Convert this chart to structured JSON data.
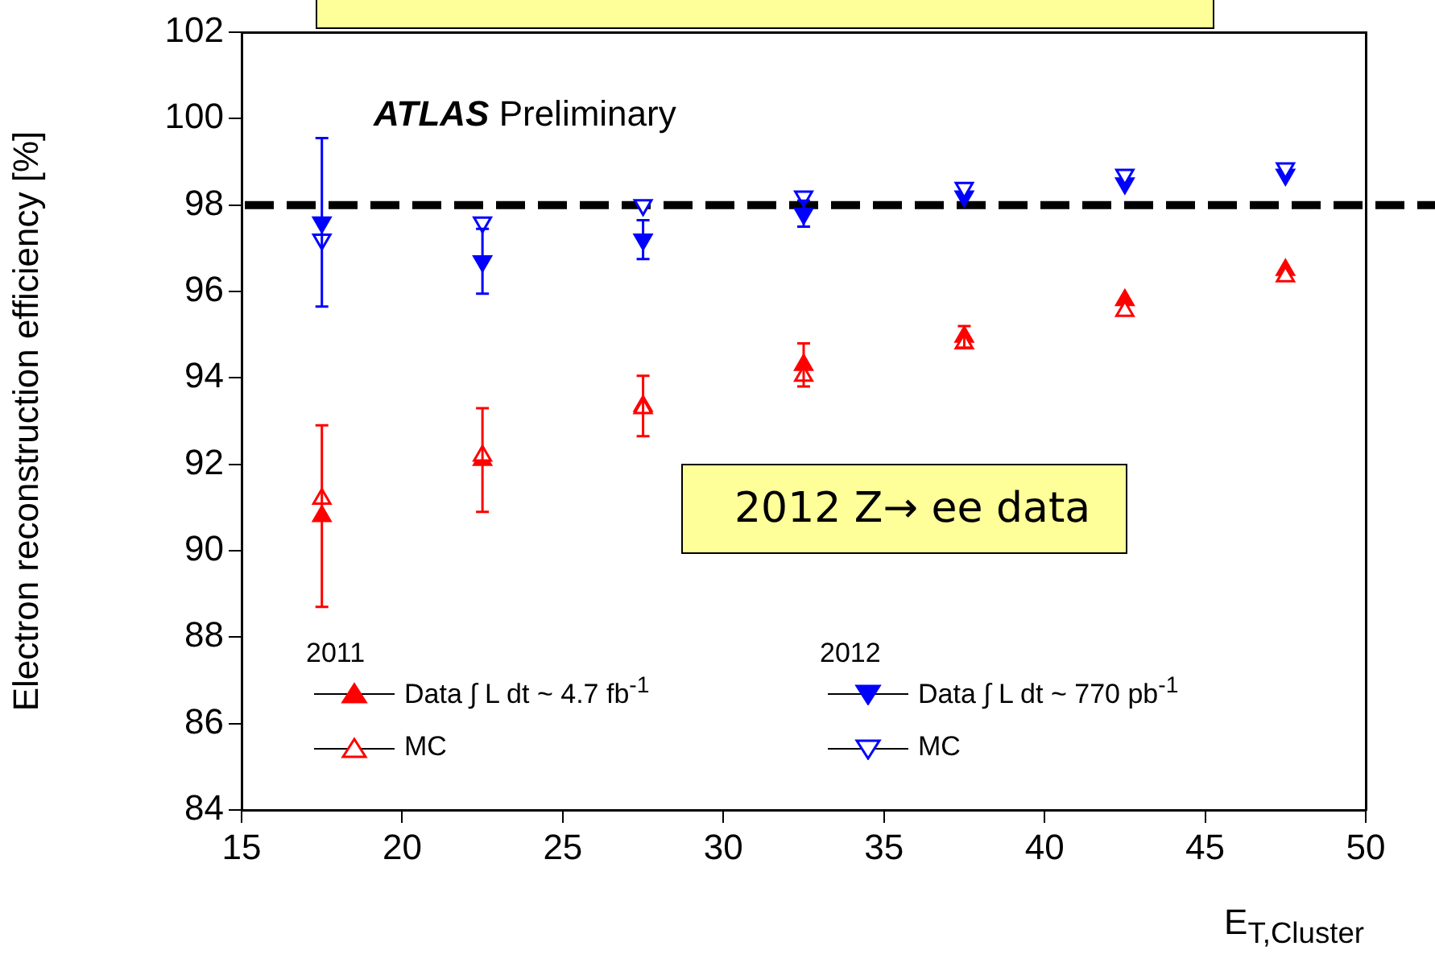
{
  "chart_data": {
    "type": "scatter",
    "ylabel": "Electron reconstruction efficiency [%]",
    "xlabel": "E$_{T,Cluster}$",
    "xlim": [
      15,
      50
    ],
    "xticks": [
      15,
      20,
      25,
      30,
      35,
      40,
      45,
      50
    ],
    "ylim": [
      84,
      102
    ],
    "yticks": [
      84,
      86,
      88,
      90,
      92,
      94,
      96,
      98,
      100,
      102
    ],
    "grid": false,
    "legend": "bottom",
    "annotations": [
      "ATLAS Preliminary",
      "2012 Z→ ee data",
      "2011",
      "2012"
    ],
    "ref_lines": [
      {
        "axis": "y",
        "value": 98,
        "color": "#000000",
        "line_style": "dashed"
      }
    ],
    "x": [
      17.5,
      22.5,
      27.5,
      32.5,
      37.5,
      42.5,
      47.5
    ],
    "series": [
      {
        "name": "Data ∫ L dt ~ 4.7 fb$^{-1}$",
        "color": "#ff0000",
        "marker": "triangle",
        "values": [
          90.8,
          92.1,
          93.35,
          94.3,
          94.95,
          95.8,
          96.5
        ],
        "errors": [
          2.1,
          1.2,
          0.7,
          0.5,
          0.25,
          null,
          null
        ]
      },
      {
        "name": "MC",
        "color": "#ff0000",
        "marker": "triangle-open",
        "values": [
          91.2,
          92.2,
          93.3,
          94.05,
          94.8,
          95.55,
          96.35
        ]
      },
      {
        "name": "Data ∫ L dt ~ 770 pb$^{-1}$",
        "color": "#0000ff",
        "marker": "triangle-down",
        "values": [
          97.6,
          96.7,
          97.2,
          97.8,
          98.2,
          98.5,
          98.7
        ],
        "errors": [
          1.95,
          0.75,
          0.45,
          0.3,
          null,
          null,
          null
        ]
      },
      {
        "name": "MC",
        "color": "#0000ff",
        "marker": "triangle-down-open",
        "values": [
          97.2,
          97.6,
          98.0,
          98.2,
          98.4,
          98.7,
          98.85
        ]
      }
    ]
  }
}
